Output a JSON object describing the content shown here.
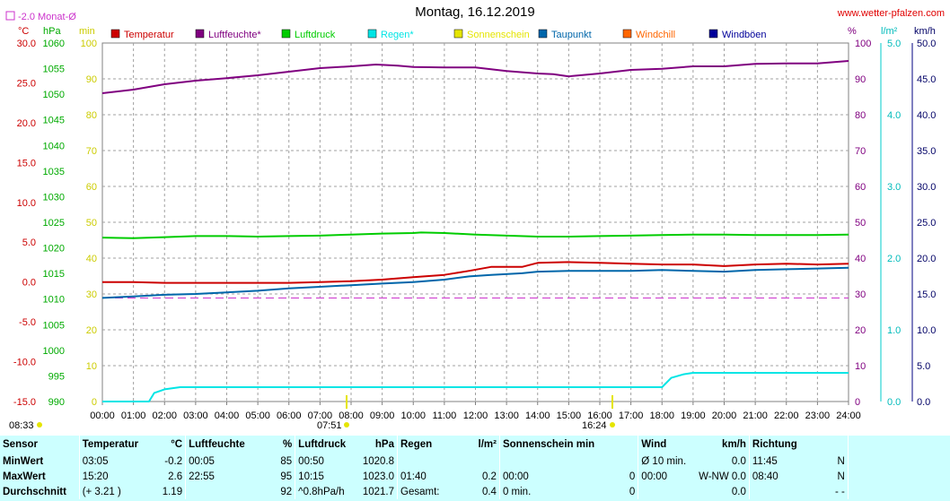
{
  "header": {
    "title": "Montag, 16.12.2019",
    "site": "www.wetter-pfalzen.com",
    "month_avg_label": "-2.0 Monat-Ø"
  },
  "units": {
    "celsius": "°C",
    "hpa": "hPa",
    "min": "min",
    "percent": "%",
    "lm2": "l/m²",
    "kmh": "km/h"
  },
  "colors": {
    "temperature": "#cc0000",
    "humidity": "#800080",
    "pressure": "#00cc00",
    "rain": "#00e5e5",
    "sun": "#e5e500",
    "dewpoint": "#0066aa",
    "windchill": "#ff6600",
    "gust": "#000099",
    "month_avg": "#cc33cc",
    "stats_bg": "#ccffff"
  },
  "sun_times": {
    "sunrise": "07:51",
    "sunset": "16:24",
    "left_time": "08:33"
  },
  "chart_data": {
    "type": "line",
    "title": "Montag, 16.12.2019",
    "x_ticks": [
      "00:00",
      "01:00",
      "02:00",
      "03:00",
      "04:00",
      "05:00",
      "06:00",
      "07:00",
      "08:00",
      "09:00",
      "10:00",
      "11:00",
      "12:00",
      "13:00",
      "14:00",
      "15:00",
      "16:00",
      "17:00",
      "18:00",
      "19:00",
      "20:00",
      "21:00",
      "22:00",
      "23:00",
      "24:00"
    ],
    "xlim_hours": [
      0,
      24
    ],
    "grid": true,
    "legend_position": "top",
    "axes": {
      "temperature_c": {
        "lim": [
          -15,
          30
        ],
        "ticks": [
          "30.0",
          "25.0",
          "20.0",
          "15.0",
          "10.0",
          "5.0",
          "0.0",
          "-5.0",
          "-10.0",
          "-15.0"
        ]
      },
      "pressure_hpa": {
        "lim": [
          990,
          1060
        ],
        "ticks": [
          "1060",
          "1055",
          "1050",
          "1045",
          "1040",
          "1035",
          "1030",
          "1025",
          "1020",
          "1015",
          "1010",
          "1005",
          "1000",
          "995",
          "990"
        ]
      },
      "sunshine_min": {
        "lim": [
          0,
          100
        ],
        "ticks": [
          "100",
          "90",
          "80",
          "70",
          "60",
          "50",
          "40",
          "30",
          "20",
          "10",
          "0"
        ]
      },
      "humidity_pct": {
        "lim": [
          0,
          100
        ],
        "ticks": [
          "100",
          "90",
          "80",
          "70",
          "60",
          "50",
          "40",
          "30",
          "20",
          "10",
          "0"
        ]
      },
      "rain_lm2": {
        "lim": [
          0,
          5
        ],
        "ticks": [
          "5.0",
          "4.0",
          "3.0",
          "2.0",
          "1.0",
          "0.0"
        ]
      },
      "wind_kmh": {
        "lim": [
          0,
          50
        ],
        "ticks": [
          "50.0",
          "45.0",
          "40.0",
          "35.0",
          "30.0",
          "25.0",
          "20.0",
          "15.0",
          "10.0",
          "5.0",
          "0.0"
        ]
      }
    },
    "month_avg_temperature": -2.0,
    "series": [
      {
        "name": "Temperatur",
        "axis": "temperature_c",
        "color": "#cc0000",
        "points": [
          [
            0,
            0.0
          ],
          [
            1,
            0.0
          ],
          [
            2,
            -0.1
          ],
          [
            3,
            -0.1
          ],
          [
            4,
            -0.1
          ],
          [
            5,
            -0.1
          ],
          [
            6,
            -0.1
          ],
          [
            7,
            0.0
          ],
          [
            8,
            0.1
          ],
          [
            9,
            0.3
          ],
          [
            10,
            0.6
          ],
          [
            11,
            0.9
          ],
          [
            11.8,
            1.4
          ],
          [
            12.5,
            1.9
          ],
          [
            13.5,
            1.9
          ],
          [
            14,
            2.4
          ],
          [
            15,
            2.5
          ],
          [
            16,
            2.4
          ],
          [
            17,
            2.3
          ],
          [
            18,
            2.2
          ],
          [
            19,
            2.2
          ],
          [
            20,
            2.0
          ],
          [
            21,
            2.2
          ],
          [
            22,
            2.3
          ],
          [
            23,
            2.2
          ],
          [
            24,
            2.3
          ]
        ]
      },
      {
        "name": "Luftfeuchte*",
        "axis": "humidity_pct",
        "color": "#800080",
        "points": [
          [
            0,
            86
          ],
          [
            1,
            87
          ],
          [
            2,
            88.5
          ],
          [
            3,
            89.5
          ],
          [
            4,
            90.2
          ],
          [
            5,
            91
          ],
          [
            6,
            92
          ],
          [
            7,
            93
          ],
          [
            8,
            93.5
          ],
          [
            8.8,
            94
          ],
          [
            9.5,
            93.7
          ],
          [
            10,
            93.3
          ],
          [
            11,
            93.2
          ],
          [
            12,
            93.2
          ],
          [
            13,
            92.2
          ],
          [
            14,
            91.5
          ],
          [
            14.5,
            91.3
          ],
          [
            15,
            90.7
          ],
          [
            16,
            91.5
          ],
          [
            17,
            92.5
          ],
          [
            18,
            92.8
          ],
          [
            19,
            93.5
          ],
          [
            20,
            93.5
          ],
          [
            21,
            94.2
          ],
          [
            22,
            94.3
          ],
          [
            23,
            94.3
          ],
          [
            24,
            95
          ]
        ]
      },
      {
        "name": "Luftdruck",
        "axis": "pressure_hpa",
        "color": "#00cc00",
        "points": [
          [
            0,
            1022.0
          ],
          [
            1,
            1021.9
          ],
          [
            2,
            1022.1
          ],
          [
            3,
            1022.3
          ],
          [
            4,
            1022.3
          ],
          [
            5,
            1022.2
          ],
          [
            6,
            1022.3
          ],
          [
            7,
            1022.4
          ],
          [
            8,
            1022.6
          ],
          [
            9,
            1022.8
          ],
          [
            10,
            1022.9
          ],
          [
            10.25,
            1023.0
          ],
          [
            11,
            1022.9
          ],
          [
            12,
            1022.6
          ],
          [
            13,
            1022.4
          ],
          [
            14,
            1022.2
          ],
          [
            15,
            1022.2
          ],
          [
            16,
            1022.3
          ],
          [
            17,
            1022.4
          ],
          [
            18,
            1022.5
          ],
          [
            19,
            1022.6
          ],
          [
            20,
            1022.6
          ],
          [
            21,
            1022.5
          ],
          [
            22,
            1022.5
          ],
          [
            23,
            1022.5
          ],
          [
            24,
            1022.6
          ]
        ]
      },
      {
        "name": "Regen*",
        "axis": "rain_lm2",
        "color": "#00e5e5",
        "points": [
          [
            0,
            0
          ],
          [
            1.5,
            0
          ],
          [
            1.67,
            0.12
          ],
          [
            2,
            0.17
          ],
          [
            2.5,
            0.2
          ],
          [
            3,
            0.2
          ],
          [
            18,
            0.2
          ],
          [
            18.3,
            0.33
          ],
          [
            18.7,
            0.38
          ],
          [
            19,
            0.4
          ],
          [
            24,
            0.4
          ]
        ]
      },
      {
        "name": "Sonnenschein",
        "axis": "sunshine_min",
        "color": "#e5e500",
        "points": []
      },
      {
        "name": "Taupunkt",
        "axis": "temperature_c",
        "color": "#0066aa",
        "points": [
          [
            0,
            -2.0
          ],
          [
            1,
            -1.8
          ],
          [
            2,
            -1.6
          ],
          [
            3,
            -1.5
          ],
          [
            4,
            -1.3
          ],
          [
            5,
            -1.1
          ],
          [
            6,
            -0.8
          ],
          [
            7,
            -0.6
          ],
          [
            8,
            -0.4
          ],
          [
            9,
            -0.2
          ],
          [
            10,
            0.0
          ],
          [
            11,
            0.3
          ],
          [
            11.8,
            0.7
          ],
          [
            12.5,
            0.9
          ],
          [
            13.5,
            1.1
          ],
          [
            14,
            1.3
          ],
          [
            15,
            1.4
          ],
          [
            16,
            1.4
          ],
          [
            17,
            1.4
          ],
          [
            18,
            1.5
          ],
          [
            19,
            1.4
          ],
          [
            20,
            1.3
          ],
          [
            21,
            1.5
          ],
          [
            22,
            1.6
          ],
          [
            23,
            1.7
          ],
          [
            24,
            1.8
          ]
        ]
      },
      {
        "name": "Windchill",
        "axis": "temperature_c",
        "color": "#ff6600",
        "points": []
      },
      {
        "name": "Windböen",
        "axis": "wind_kmh",
        "color": "#000099",
        "points": []
      }
    ]
  },
  "stats": {
    "headers": {
      "sensor": "Sensor",
      "temperature": "Temperatur",
      "temperature_unit": "°C",
      "humidity": "Luftfeuchte",
      "humidity_unit": "%",
      "pressure": "Luftdruck",
      "pressure_unit": "hPa",
      "rain": "Regen",
      "rain_unit": "l/m²",
      "sun": "Sonnenschein min",
      "wind": "Wind",
      "wind_unit": "km/h",
      "direction": "Richtung"
    },
    "rows": [
      {
        "label": "MinWert",
        "temp_time": "03:05",
        "temp_val": "-0.2",
        "hum_time": "00:05",
        "hum_val": "85",
        "pres_time": "00:50",
        "pres_val": "1020.8",
        "rain_time": "",
        "rain_val": "",
        "sun_time": "",
        "sun_val": "",
        "wind_time": "Ø 10 min.",
        "wind_val": "0.0",
        "dir_time": "11:45",
        "dir_val": "N"
      },
      {
        "label": "MaxWert",
        "temp_time": "15:20",
        "temp_val": "2.6",
        "hum_time": "22:55",
        "hum_val": "95",
        "pres_time": "10:15",
        "pres_val": "1023.0",
        "rain_time": "01:40",
        "rain_val": "0.2",
        "sun_time": "00:00",
        "sun_val": "0",
        "wind_time": "00:00",
        "wind_val": "W-NW 0.0",
        "dir_time": "08:40",
        "dir_val": "N"
      },
      {
        "label": "Durchschnitt",
        "temp_time": "(+ 3.21 )",
        "temp_val": "1.19",
        "hum_time": "",
        "hum_val": "92",
        "pres_time": "^0.8hPa/h",
        "pres_val": "1021.7",
        "rain_time": "Gesamt:",
        "rain_val": "0.4",
        "sun_time": "0 min.",
        "sun_val": "0",
        "wind_time": "",
        "wind_val": "0.0",
        "dir_time": "",
        "dir_val": "- -"
      }
    ]
  }
}
